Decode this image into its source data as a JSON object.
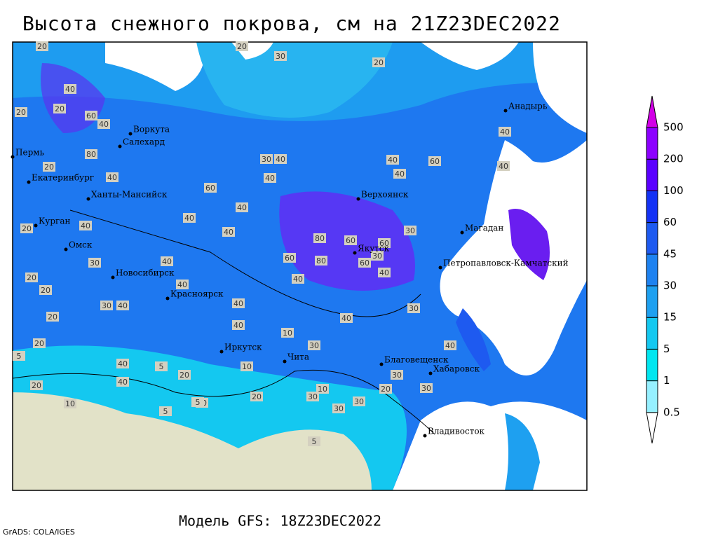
{
  "header": {
    "title": "Высота снежного покрова, см на 21Z23DEC2022"
  },
  "footer": {
    "model": "Модель GFS: 18Z23DEC2022",
    "credit": "GrADS: COLA/IGES"
  },
  "colorbar": {
    "levels": [
      0.5,
      1,
      5,
      15,
      30,
      45,
      60,
      100,
      200,
      500
    ],
    "colors": [
      "#ffffff",
      "#96f0ff",
      "#00e6f0",
      "#14c8f0",
      "#1ea0f0",
      "#1e82f0",
      "#1e5af0",
      "#1432f5",
      "#5a00ff",
      "#8c00ff",
      "#d200e6"
    ]
  },
  "cities": [
    "Воркута",
    "Салехард",
    "Пермь",
    "Екатеринбург",
    "Ханты-Мансийск",
    "Курган",
    "Омск",
    "Новосибирск",
    "Красноярск",
    "Иркутск",
    "Чита",
    "Верхоянск",
    "Якутск",
    "Магадан",
    "Петропавловск-Камчатский",
    "Анадырь",
    "Благовещенск",
    "Хабаровск",
    "Владивосток"
  ],
  "contour_labels": [
    20,
    30,
    20,
    20,
    40,
    20,
    20,
    60,
    40,
    80,
    20,
    40,
    60,
    40,
    40,
    40,
    40,
    40,
    30,
    40,
    40,
    40,
    60,
    40,
    40,
    30,
    40,
    20,
    40,
    80,
    60,
    60,
    60,
    80,
    60,
    30,
    40,
    40,
    20,
    30,
    40,
    20,
    30,
    40,
    40,
    40,
    20,
    30,
    10,
    5,
    20,
    30,
    20,
    5,
    10,
    20,
    10,
    5,
    10,
    30,
    5,
    10,
    20,
    30,
    30,
    5,
    40,
    40,
    30,
    20,
    30,
    40
  ]
}
